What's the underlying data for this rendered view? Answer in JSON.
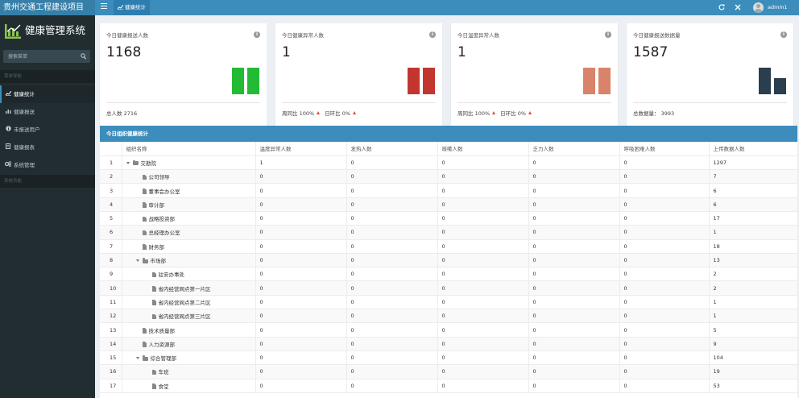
{
  "app": {
    "title": "贵州交通工程建设项目",
    "active_tab": "健康统计",
    "username": "admin1"
  },
  "icons": {
    "menu": "hamburger-icon",
    "refresh": "refresh-icon",
    "fullscreen": "expand-icon",
    "avatar": "user-avatar-icon"
  },
  "sidebar": {
    "logo_text": "健康管理系统",
    "search_placeholder": "搜索菜单",
    "section_main": "菜单导航",
    "items": [
      {
        "label": "健康统计",
        "icon": "line-chart-icon",
        "active": true
      },
      {
        "label": "健康报送",
        "icon": "bar-chart-icon",
        "active": false
      },
      {
        "label": "未报送用户",
        "icon": "info-circle-icon",
        "active": false
      },
      {
        "label": "健康报表",
        "icon": "document-icon",
        "active": false
      },
      {
        "label": "系统管理",
        "icon": "gears-icon",
        "active": false
      }
    ],
    "section_tools": "系统功能"
  },
  "cards": [
    {
      "title": "今日健康报送人数",
      "value": "1168",
      "footer": "总人数 2716",
      "color": "#22bb33",
      "bars": [
        1,
        1
      ]
    },
    {
      "title": "今日健康异常人数",
      "value": "1",
      "footer_week_label": "周同比",
      "footer_week_value": "100%",
      "footer_day_label": "日环比",
      "footer_day_value": "0%",
      "color": "#c2362f",
      "bars": [
        1,
        1
      ]
    },
    {
      "title": "今日温度异常人数",
      "value": "1",
      "footer_week_label": "周同比",
      "footer_week_value": "100%",
      "footer_day_label": "日环比",
      "footer_day_value": "0%",
      "color": "#d9836a",
      "bars": [
        1,
        1
      ]
    },
    {
      "title": "今日健康报送数据量",
      "value": "1587",
      "footer_label": "总数据量：",
      "footer_value": "3993",
      "color": "#2b3e4d",
      "bars": [
        1,
        0.6
      ]
    }
  ],
  "table": {
    "title": "今日组织健康统计",
    "columns": [
      "",
      "组织名称",
      "温度异常人数",
      "发热人数",
      "咳嗽人数",
      "乏力人数",
      "呼吸困难人数",
      "上传数据人数"
    ],
    "rows": [
      {
        "idx": "1",
        "level": 0,
        "expand": true,
        "folder": true,
        "name": "交勘院",
        "vals": [
          "1",
          "0",
          "0",
          "0",
          "0",
          "1297"
        ]
      },
      {
        "idx": "2",
        "level": 1,
        "expand": false,
        "folder": false,
        "name": "公司领导",
        "vals": [
          "0",
          "0",
          "0",
          "0",
          "0",
          "7"
        ]
      },
      {
        "idx": "3",
        "level": 1,
        "expand": false,
        "folder": false,
        "name": "董事会办公室",
        "vals": [
          "0",
          "0",
          "0",
          "0",
          "0",
          "6"
        ]
      },
      {
        "idx": "4",
        "level": 1,
        "expand": false,
        "folder": false,
        "name": "审计部",
        "vals": [
          "0",
          "0",
          "0",
          "0",
          "0",
          "6"
        ]
      },
      {
        "idx": "5",
        "level": 1,
        "expand": false,
        "folder": false,
        "name": "战略投资部",
        "vals": [
          "0",
          "0",
          "0",
          "0",
          "0",
          "17"
        ]
      },
      {
        "idx": "6",
        "level": 1,
        "expand": false,
        "folder": false,
        "name": "总经理办公室",
        "vals": [
          "0",
          "0",
          "0",
          "0",
          "0",
          "1"
        ]
      },
      {
        "idx": "7",
        "level": 1,
        "expand": false,
        "folder": false,
        "name": "财务部",
        "vals": [
          "0",
          "0",
          "0",
          "0",
          "0",
          "18"
        ]
      },
      {
        "idx": "8",
        "level": 1,
        "expand": true,
        "folder": true,
        "name": "市场部",
        "vals": [
          "0",
          "0",
          "0",
          "0",
          "0",
          "13"
        ]
      },
      {
        "idx": "9",
        "level": 2,
        "expand": false,
        "folder": false,
        "name": "驻安办事处",
        "vals": [
          "0",
          "0",
          "0",
          "0",
          "0",
          "2"
        ]
      },
      {
        "idx": "10",
        "level": 2,
        "expand": false,
        "folder": false,
        "name": "省内经营网点第一片区",
        "vals": [
          "0",
          "0",
          "0",
          "0",
          "0",
          "2"
        ]
      },
      {
        "idx": "11",
        "level": 2,
        "expand": false,
        "folder": false,
        "name": "省内经营网点第二片区",
        "vals": [
          "0",
          "0",
          "0",
          "0",
          "0",
          "1"
        ]
      },
      {
        "idx": "12",
        "level": 2,
        "expand": false,
        "folder": false,
        "name": "省内经营网点第三片区",
        "vals": [
          "0",
          "0",
          "0",
          "0",
          "0",
          "1"
        ]
      },
      {
        "idx": "13",
        "level": 1,
        "expand": false,
        "folder": false,
        "name": "技术质量部",
        "vals": [
          "0",
          "0",
          "0",
          "0",
          "0",
          "5"
        ]
      },
      {
        "idx": "14",
        "level": 1,
        "expand": false,
        "folder": false,
        "name": "人力资源部",
        "vals": [
          "0",
          "0",
          "0",
          "0",
          "0",
          "9"
        ]
      },
      {
        "idx": "15",
        "level": 1,
        "expand": true,
        "folder": true,
        "name": "综合管理部",
        "vals": [
          "0",
          "0",
          "0",
          "0",
          "0",
          "104"
        ]
      },
      {
        "idx": "16",
        "level": 2,
        "expand": false,
        "folder": false,
        "name": "车班",
        "vals": [
          "0",
          "0",
          "0",
          "0",
          "0",
          "19"
        ]
      },
      {
        "idx": "17",
        "level": 2,
        "expand": false,
        "folder": false,
        "name": "食堂",
        "vals": [
          "0",
          "0",
          "0",
          "0",
          "0",
          "53"
        ]
      }
    ]
  }
}
